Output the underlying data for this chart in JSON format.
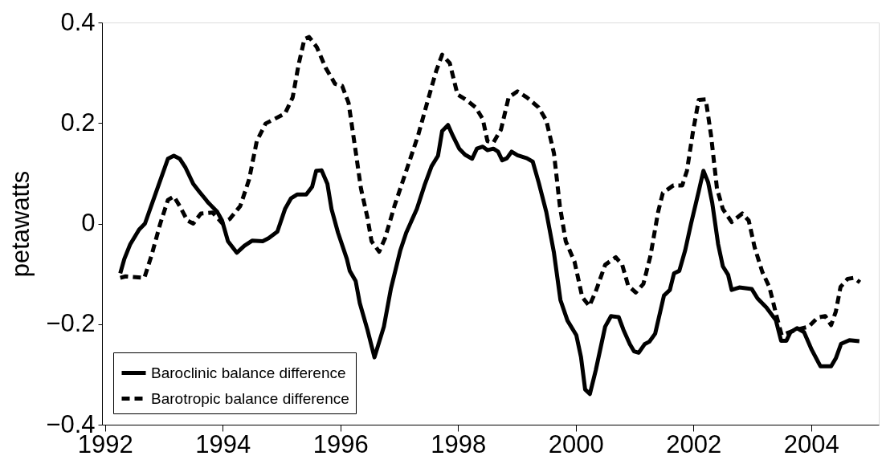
{
  "chart_data": {
    "type": "line",
    "ylabel": "petawatts",
    "xlim": [
      1991.95,
      2005.15
    ],
    "ylim": [
      -0.4,
      0.4
    ],
    "xticks": [
      1992,
      1994,
      1996,
      1998,
      2000,
      2002,
      2004
    ],
    "yticks": [
      {
        "value": -0.4,
        "label": "−0.4"
      },
      {
        "value": -0.2,
        "label": "−0.2"
      },
      0,
      0.2,
      0.4
    ],
    "grid": false,
    "legend": "bottom left",
    "marker": "none",
    "series": [
      {
        "name": "Baroclinic balance difference",
        "color": "#000000",
        "line_style": "solid",
        "x": [
          1992.26,
          1992.33,
          1992.43,
          1992.58,
          1992.68,
          1992.84,
          1993.07,
          1993.17,
          1993.27,
          1993.37,
          1993.5,
          1993.6,
          1993.76,
          1993.91,
          1993.99,
          1994.09,
          1994.24,
          1994.37,
          1994.5,
          1994.68,
          1994.78,
          1994.93,
          1995.06,
          1995.16,
          1995.27,
          1995.42,
          1995.52,
          1995.59,
          1995.68,
          1995.78,
          1995.85,
          1995.96,
          1996.11,
          1996.16,
          1996.26,
          1996.33,
          1996.46,
          1996.58,
          1996.74,
          1996.86,
          1997.02,
          1997.12,
          1997.3,
          1997.43,
          1997.55,
          1997.66,
          1997.73,
          1997.83,
          1997.91,
          1998.02,
          1998.12,
          1998.24,
          1998.32,
          1998.42,
          1998.5,
          1998.6,
          1998.68,
          1998.75,
          1998.83,
          1998.91,
          1999.01,
          1999.17,
          1999.27,
          1999.37,
          1999.5,
          1999.63,
          1999.74,
          1999.86,
          2000.01,
          2000.09,
          2000.16,
          2000.24,
          2000.34,
          2000.5,
          2000.6,
          2000.73,
          2000.81,
          2000.92,
          2000.99,
          2001.07,
          2001.17,
          2001.25,
          2001.35,
          2001.5,
          2001.6,
          2001.67,
          2001.76,
          2001.86,
          2001.96,
          2002.09,
          2002.17,
          2002.25,
          2002.32,
          2002.42,
          2002.5,
          2002.59,
          2002.65,
          2002.78,
          2002.99,
          2003.09,
          2003.24,
          2003.4,
          2003.49,
          2003.58,
          2003.65,
          2003.76,
          2003.88,
          2004.01,
          2004.16,
          2004.34,
          2004.42,
          2004.51,
          2004.65,
          2004.82
        ],
        "values": [
          -0.099,
          -0.07,
          -0.041,
          -0.012,
          0.0,
          0.053,
          0.129,
          0.135,
          0.129,
          0.111,
          0.079,
          0.064,
          0.041,
          0.023,
          0.006,
          -0.035,
          -0.058,
          -0.044,
          -0.034,
          -0.035,
          -0.029,
          -0.016,
          0.029,
          0.05,
          0.058,
          0.058,
          0.073,
          0.105,
          0.106,
          0.079,
          0.029,
          -0.018,
          -0.07,
          -0.094,
          -0.114,
          -0.158,
          -0.211,
          -0.266,
          -0.205,
          -0.129,
          -0.053,
          -0.018,
          0.029,
          0.076,
          0.114,
          0.135,
          0.184,
          0.196,
          0.175,
          0.149,
          0.137,
          0.129,
          0.149,
          0.153,
          0.146,
          0.149,
          0.143,
          0.126,
          0.13,
          0.143,
          0.136,
          0.13,
          0.123,
          0.082,
          0.023,
          -0.058,
          -0.152,
          -0.193,
          -0.222,
          -0.266,
          -0.33,
          -0.339,
          -0.292,
          -0.205,
          -0.184,
          -0.186,
          -0.211,
          -0.24,
          -0.254,
          -0.257,
          -0.24,
          -0.235,
          -0.219,
          -0.143,
          -0.132,
          -0.099,
          -0.094,
          -0.053,
          0.0,
          0.064,
          0.105,
          0.082,
          0.041,
          -0.041,
          -0.085,
          -0.102,
          -0.132,
          -0.127,
          -0.13,
          -0.149,
          -0.167,
          -0.192,
          -0.233,
          -0.233,
          -0.216,
          -0.208,
          -0.216,
          -0.251,
          -0.284,
          -0.284,
          -0.268,
          -0.239,
          -0.232,
          -0.234
        ]
      },
      {
        "name": "Barotropic balance difference",
        "color": "#000000",
        "line_style": "dashed",
        "x": [
          1992.26,
          1992.35,
          1992.67,
          1992.79,
          1992.94,
          1993.07,
          1993.17,
          1993.27,
          1993.4,
          1993.5,
          1993.63,
          1993.83,
          1993.99,
          1994.12,
          1994.3,
          1994.45,
          1994.58,
          1994.73,
          1994.88,
          1995.06,
          1995.19,
          1995.29,
          1995.39,
          1995.47,
          1995.6,
          1995.75,
          1995.91,
          1996.03,
          1996.14,
          1996.25,
          1996.35,
          1996.46,
          1996.53,
          1996.66,
          1996.76,
          1996.92,
          1997.12,
          1997.32,
          1997.53,
          1997.63,
          1997.73,
          1997.86,
          1997.99,
          1998.14,
          1998.3,
          1998.42,
          1998.5,
          1998.6,
          1998.73,
          1998.86,
          1999.01,
          1999.17,
          1999.37,
          1999.5,
          1999.63,
          1999.73,
          1999.83,
          1999.98,
          2000.11,
          2000.23,
          2000.34,
          2000.5,
          2000.68,
          2000.79,
          2000.89,
          2001.02,
          2001.15,
          2001.27,
          2001.4,
          2001.48,
          2001.66,
          2001.81,
          2001.89,
          2001.99,
          2002.09,
          2002.21,
          2002.3,
          2002.4,
          2002.5,
          2002.65,
          2002.83,
          2002.94,
          2003.04,
          2003.17,
          2003.29,
          2003.42,
          2003.5,
          2003.75,
          2003.96,
          2004.11,
          2004.24,
          2004.34,
          2004.42,
          2004.5,
          2004.62,
          2004.73,
          2004.83
        ],
        "values": [
          -0.108,
          -0.105,
          -0.108,
          -0.064,
          0.0,
          0.047,
          0.054,
          0.035,
          0.006,
          0.0,
          0.02,
          0.022,
          0.001,
          0.009,
          0.035,
          0.088,
          0.164,
          0.199,
          0.208,
          0.219,
          0.251,
          0.316,
          0.367,
          0.371,
          0.351,
          0.31,
          0.278,
          0.274,
          0.24,
          0.152,
          0.07,
          0.012,
          -0.035,
          -0.056,
          -0.029,
          0.035,
          0.105,
          0.175,
          0.263,
          0.304,
          0.336,
          0.319,
          0.257,
          0.246,
          0.231,
          0.208,
          0.164,
          0.161,
          0.187,
          0.251,
          0.263,
          0.251,
          0.231,
          0.205,
          0.14,
          0.035,
          -0.035,
          -0.076,
          -0.146,
          -0.164,
          -0.135,
          -0.082,
          -0.067,
          -0.082,
          -0.123,
          -0.137,
          -0.12,
          -0.064,
          0.023,
          0.061,
          0.076,
          0.076,
          0.105,
          0.181,
          0.246,
          0.247,
          0.175,
          0.07,
          0.029,
          0.003,
          0.02,
          0.006,
          -0.047,
          -0.096,
          -0.126,
          -0.187,
          -0.222,
          -0.211,
          -0.205,
          -0.187,
          -0.184,
          -0.202,
          -0.175,
          -0.126,
          -0.11,
          -0.108,
          -0.117
        ]
      }
    ]
  }
}
